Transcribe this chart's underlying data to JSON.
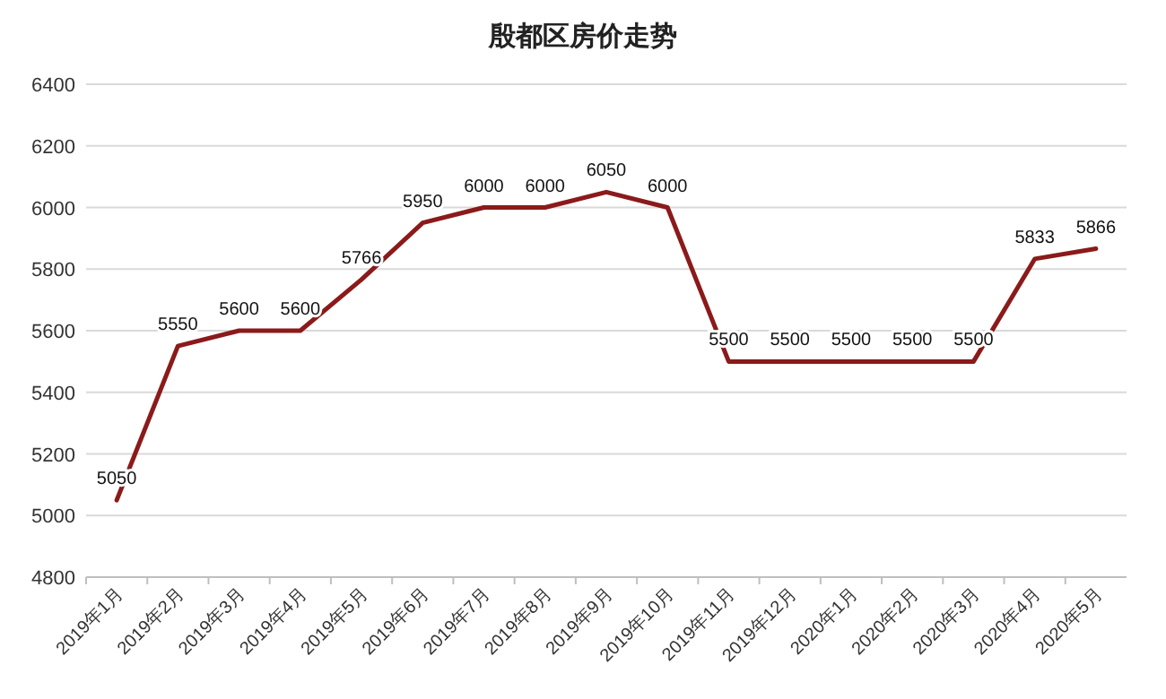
{
  "chart_data": {
    "type": "line",
    "title": "殷都区房价走势",
    "categories": [
      "2019年1月",
      "2019年2月",
      "2019年3月",
      "2019年4月",
      "2019年5月",
      "2019年6月",
      "2019年7月",
      "2019年8月",
      "2019年9月",
      "2019年10月",
      "2019年11月",
      "2019年12月",
      "2020年1月",
      "2020年2月",
      "2020年3月",
      "2020年4月",
      "2020年5月"
    ],
    "series": [
      {
        "color": "#8b1a1a",
        "values": [
          5050,
          5550,
          5600,
          5600,
          5766,
          5950,
          6000,
          6000,
          6050,
          6000,
          5500,
          5500,
          5500,
          5500,
          5500,
          5833,
          5866
        ]
      }
    ],
    "ylim": [
      4800,
      6400
    ],
    "yticks": [
      4800,
      5000,
      5200,
      5400,
      5600,
      5800,
      6000,
      6200,
      6400
    ],
    "grid": "y",
    "data_labels": true,
    "marker": "none",
    "line_style": "solid"
  }
}
